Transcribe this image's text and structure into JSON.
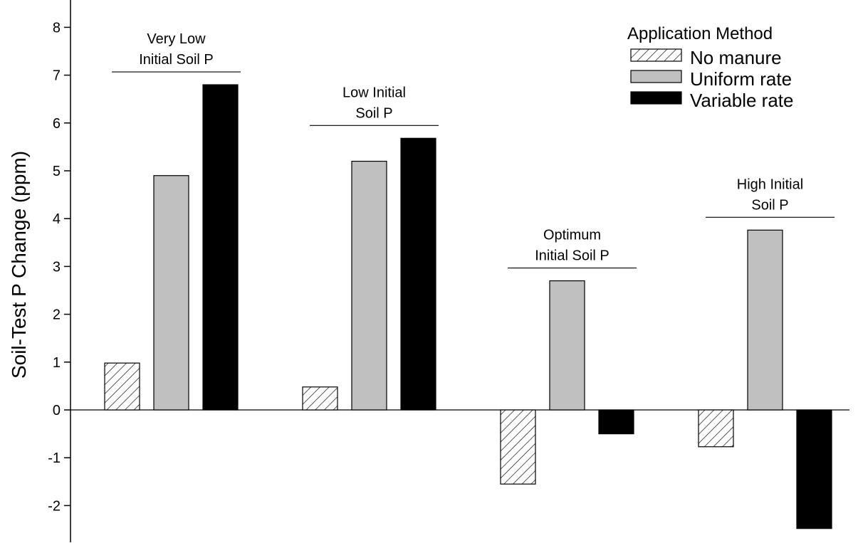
{
  "chart_data": {
    "type": "bar",
    "ylabel": "Soil-Test P Change (ppm)",
    "ylim": [
      -2.6,
      8.3
    ],
    "yticks": [
      -2,
      -1,
      0,
      1,
      2,
      3,
      4,
      5,
      6,
      7,
      8
    ],
    "grid": false,
    "legend": {
      "title": "Application Method",
      "placement": "top-right"
    },
    "groups": [
      {
        "label_lines": [
          "Very Low",
          "Initial Soil P"
        ]
      },
      {
        "label_lines": [
          "Low Initial",
          "Soil P"
        ]
      },
      {
        "label_lines": [
          "Optimum",
          "Initial Soil P"
        ]
      },
      {
        "label_lines": [
          "High Initial",
          "Soil P"
        ]
      }
    ],
    "series": [
      {
        "name": "No manure",
        "fill": "hatch",
        "values": [
          0.98,
          0.48,
          -1.55,
          -0.77
        ]
      },
      {
        "name": "Uniform rate",
        "fill": "#c0c0c0",
        "values": [
          4.9,
          5.2,
          2.7,
          3.76
        ]
      },
      {
        "name": "Variable rate",
        "fill": "#000000",
        "values": [
          6.8,
          5.68,
          -0.5,
          -2.48
        ]
      }
    ]
  }
}
